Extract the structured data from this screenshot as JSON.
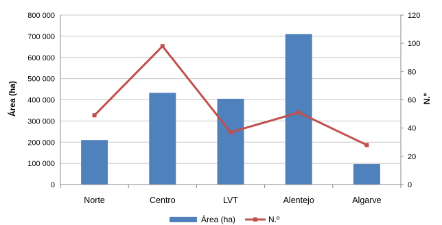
{
  "chart_data": {
    "type": "bar+line",
    "categories": [
      "Norte",
      "Centro",
      "LVT",
      "Alentejo",
      "Algarve"
    ],
    "series": [
      {
        "name": "Área (ha)",
        "type": "bar",
        "axis": "left",
        "values": [
          210000,
          433000,
          405000,
          710000,
          97000
        ],
        "color": "#4F81BD"
      },
      {
        "name": "N.º",
        "type": "line",
        "axis": "right",
        "values": [
          49,
          98,
          37,
          51,
          28
        ],
        "color": "#C0504D"
      }
    ],
    "ylabel_left": "Área (ha)",
    "ylabel_right": "N.º",
    "ylim_left": [
      0,
      800000
    ],
    "ylim_right": [
      0,
      120
    ],
    "yticks_left": [
      "0",
      "100 000",
      "200 000",
      "300 000",
      "400 000",
      "500 000",
      "600 000",
      "700 000",
      "800 000"
    ],
    "yticks_right": [
      "0",
      "20",
      "40",
      "60",
      "80",
      "100",
      "120"
    ],
    "grid": true,
    "legend_position": "bottom"
  }
}
